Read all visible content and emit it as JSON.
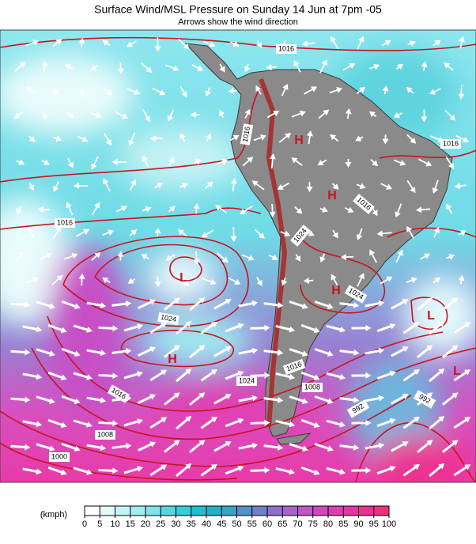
{
  "header": {
    "title": "Surface Wind/MSL Pressure on Sunday 14 Jun at 7pm -05",
    "subtitle": "Arrows show the wind direction"
  },
  "isobar_labels": [
    "1016",
    "1016",
    "1016",
    "1016",
    "1016",
    "1024",
    "1024",
    "1024",
    "1016",
    "1024",
    "1016",
    "1008",
    "1008",
    "1000",
    "992",
    "992"
  ],
  "pressure_centers": [
    "L",
    "H",
    "L",
    "H",
    "L",
    "H",
    "H"
  ],
  "colorbar": {
    "unit": "(kmph)",
    "ticks": [
      0,
      5,
      10,
      15,
      20,
      25,
      30,
      35,
      40,
      45,
      50,
      55,
      60,
      65,
      70,
      75,
      80,
      85,
      90,
      95,
      100
    ],
    "colors": [
      "#ffffff",
      "#e6fbfb",
      "#c6f4f6",
      "#a4ecf0",
      "#7ee3ea",
      "#56d8e2",
      "#33cdd9",
      "#1fc0d0",
      "#22b2c8",
      "#3aa2c6",
      "#5590c8",
      "#7280cb",
      "#8f70cc",
      "#a963cb",
      "#c055c6",
      "#d148bd",
      "#df3db0",
      "#e834a1",
      "#ee3090",
      "#f0307c"
    ]
  }
}
